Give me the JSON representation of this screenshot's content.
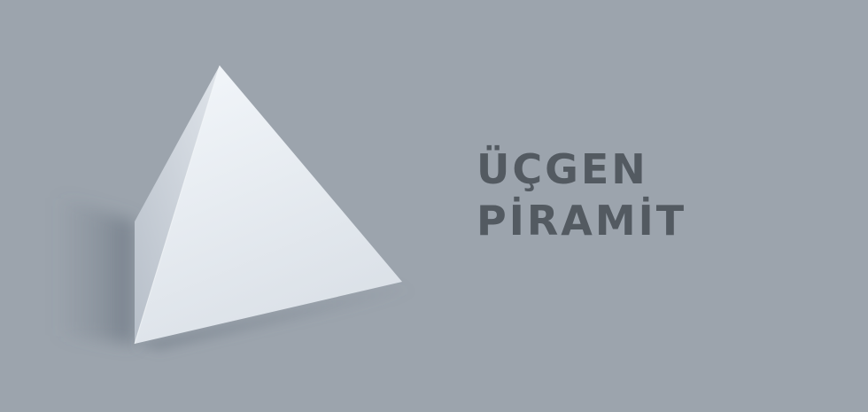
{
  "title": {
    "line1": "ÜÇGEN",
    "line2": "PİRAMİT"
  },
  "colors": {
    "background": "#9ca4ad",
    "text": "#535a61",
    "pyramid_front": "#e4e9ef",
    "pyramid_side": "#c5ccd5",
    "shadow": "#5f6a77"
  },
  "illustration": {
    "subject": "triangular-pyramid"
  }
}
